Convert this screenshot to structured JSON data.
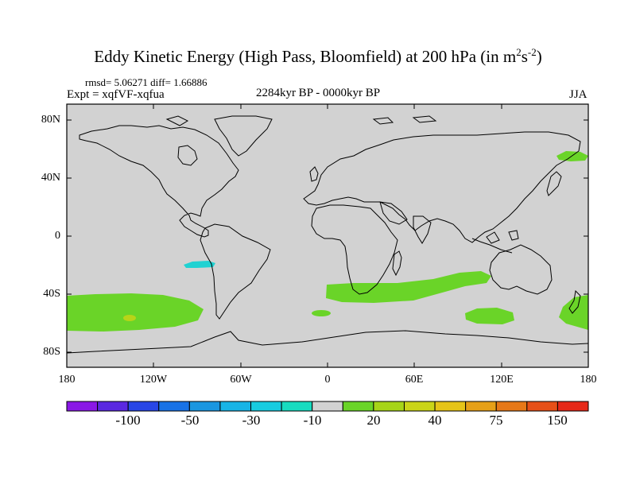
{
  "title_main": "Eddy Kinetic Energy (High Pass, Bloomfield) at 200 hPa (in m",
  "title_sup1": "2",
  "title_mid": "s",
  "title_sup2": "-2",
  "title_end": ")",
  "stats": "rmsd= 5.06271 diff= 1.66886",
  "expt": "Expt = xqfVF-xqfua",
  "period": "2284kyr BP - 0000kyr BP",
  "season": "JJA",
  "lat_labels": [
    "80N",
    "40N",
    "0",
    "40S",
    "80S"
  ],
  "lon_labels": [
    "180",
    "120W",
    "60W",
    "0",
    "60E",
    "120E",
    "180"
  ],
  "colorbar_labels": [
    "-100",
    "-50",
    "-30",
    "-10",
    "20",
    "40",
    "75",
    "150"
  ],
  "colors": {
    "land_ocean": "#d2d2d2",
    "cyan_anomaly": "#20d2d2",
    "green_anomaly": "#6ad428",
    "yellow_anomaly": "#b8d418",
    "coast": "#000000"
  },
  "colorbar_colors": [
    "#8a18e6",
    "#5a28e0",
    "#2846e6",
    "#1872e6",
    "#1a96e0",
    "#18b4e6",
    "#18cce0",
    "#18dcc0",
    "#d2d2d2",
    "#6ad428",
    "#a6d418",
    "#cad418",
    "#e6c418",
    "#e6a018",
    "#e67818",
    "#e65018",
    "#e62818"
  ]
}
